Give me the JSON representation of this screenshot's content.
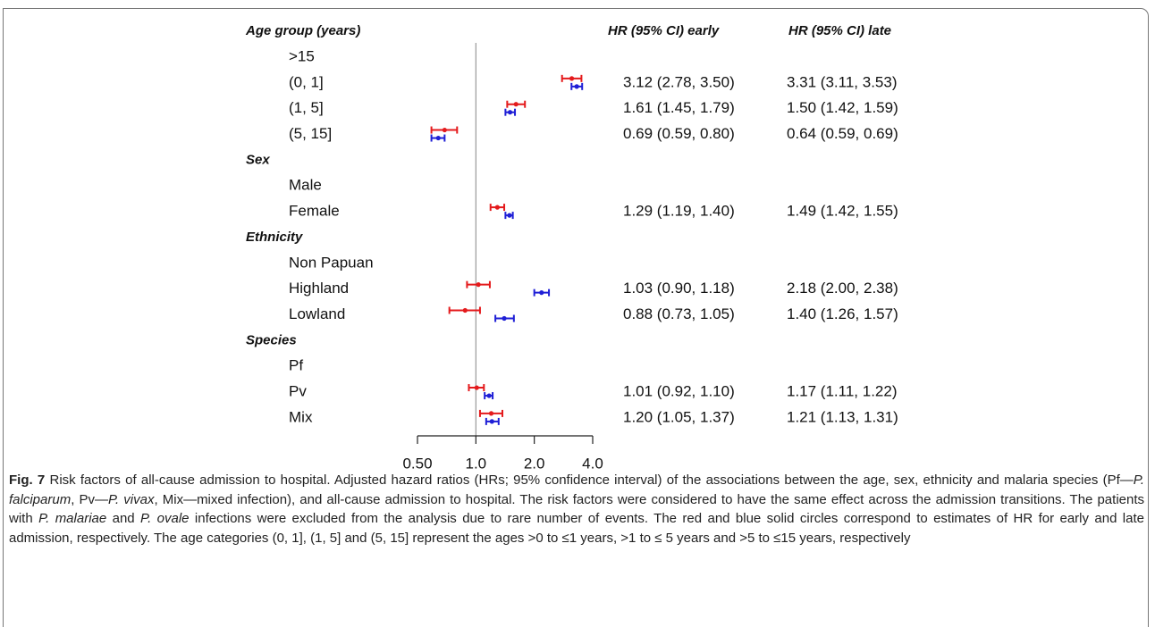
{
  "figure": {
    "column_headers": {
      "label": "Age group (years)",
      "early": "HR (95% CI) early",
      "late": "HR (95% CI) late"
    },
    "scale": "log",
    "xlim": [
      0.5,
      4
    ],
    "xticks": [
      {
        "value": 0.5,
        "label": "0.50"
      },
      {
        "value": 1,
        "label": "1.0"
      },
      {
        "value": 2,
        "label": "2.0"
      },
      {
        "value": 4,
        "label": "4.0"
      }
    ],
    "reference_line": 1,
    "early_color": "#e41a1c",
    "late_color": "#1f1fd6",
    "groups": [
      {
        "title": null,
        "items": [
          {
            "label": ">15"
          },
          {
            "label": "(0, 1]",
            "early": {
              "hr": 3.12,
              "lo": 2.78,
              "hi": 3.5,
              "label": "3.12 (2.78, 3.50)"
            },
            "late": {
              "hr": 3.31,
              "lo": 3.11,
              "hi": 3.53,
              "label": "3.31 (3.11, 3.53)"
            }
          },
          {
            "label": "(1, 5]",
            "early": {
              "hr": 1.61,
              "lo": 1.45,
              "hi": 1.79,
              "label": "1.61 (1.45, 1.79)"
            },
            "late": {
              "hr": 1.5,
              "lo": 1.42,
              "hi": 1.59,
              "label": "1.50 (1.42, 1.59)"
            }
          },
          {
            "label": "(5, 15]",
            "early": {
              "hr": 0.69,
              "lo": 0.59,
              "hi": 0.8,
              "label": "0.69 (0.59, 0.80)"
            },
            "late": {
              "hr": 0.64,
              "lo": 0.59,
              "hi": 0.69,
              "label": "0.64 (0.59, 0.69)"
            }
          }
        ]
      },
      {
        "title": "Sex",
        "items": [
          {
            "label": "Male"
          },
          {
            "label": "Female",
            "early": {
              "hr": 1.29,
              "lo": 1.19,
              "hi": 1.4,
              "label": "1.29 (1.19, 1.40)"
            },
            "late": {
              "hr": 1.49,
              "lo": 1.42,
              "hi": 1.55,
              "label": "1.49 (1.42, 1.55)"
            }
          }
        ]
      },
      {
        "title": "Ethnicity",
        "items": [
          {
            "label": "Non Papuan"
          },
          {
            "label": "Highland",
            "early": {
              "hr": 1.03,
              "lo": 0.9,
              "hi": 1.18,
              "label": "1.03 (0.90, 1.18)"
            },
            "late": {
              "hr": 2.18,
              "lo": 2.0,
              "hi": 2.38,
              "label": "2.18 (2.00, 2.38)"
            }
          },
          {
            "label": "Lowland",
            "early": {
              "hr": 0.88,
              "lo": 0.73,
              "hi": 1.05,
              "label": "0.88 (0.73, 1.05)"
            },
            "late": {
              "hr": 1.4,
              "lo": 1.26,
              "hi": 1.57,
              "label": "1.40 (1.26, 1.57)"
            }
          }
        ]
      },
      {
        "title": "Species",
        "items": [
          {
            "label": "Pf"
          },
          {
            "label": "Pv",
            "early": {
              "hr": 1.01,
              "lo": 0.92,
              "hi": 1.1,
              "label": "1.01 (0.92, 1.10)"
            },
            "late": {
              "hr": 1.17,
              "lo": 1.11,
              "hi": 1.22,
              "label": "1.17 (1.11, 1.22)"
            }
          },
          {
            "label": "Mix",
            "early": {
              "hr": 1.2,
              "lo": 1.05,
              "hi": 1.37,
              "label": "1.20 (1.05, 1.37)"
            },
            "late": {
              "hr": 1.21,
              "lo": 1.13,
              "hi": 1.31,
              "label": "1.21 (1.13, 1.31)"
            }
          }
        ]
      }
    ]
  },
  "caption": {
    "label": "Fig. 7",
    "segments": [
      {
        "text": " Risk factors of all-cause admission to hospital. Adjusted hazard ratios (HRs; 95% confidence interval) of the associations between the age, sex, ethnicity and malaria species (Pf—",
        "italic": false
      },
      {
        "text": "P. falciparum",
        "italic": true
      },
      {
        "text": ", Pv—",
        "italic": false
      },
      {
        "text": "P. vivax",
        "italic": true
      },
      {
        "text": ", Mix—mixed infection), and all-cause admission to hospital. The risk factors were considered to have the same effect across the admission transitions. The patients with ",
        "italic": false
      },
      {
        "text": "P. malariae",
        "italic": true
      },
      {
        "text": " and ",
        "italic": false
      },
      {
        "text": "P. ovale",
        "italic": true
      },
      {
        "text": " infections were excluded from the analysis due to rare number of events. The red and blue solid circles correspond to estimates of HR for early and late admission, respectively. The age categories (0, 1], (1, 5] and (5, 15] represent the ages >0 to ≤1 years, >1 to ≤ 5 years and >5 to ≤15 years, respectively",
        "italic": false
      }
    ]
  }
}
